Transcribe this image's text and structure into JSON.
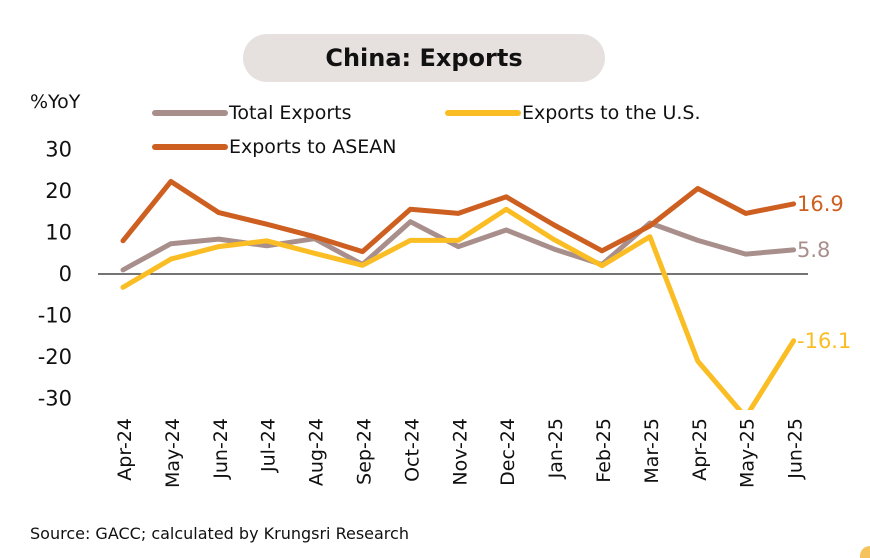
{
  "chart_data": {
    "type": "line",
    "title": "China: Exports",
    "ylabel": "%YoY",
    "xlabel": "",
    "source": "Source: GACC; calculated by Krungsri Research",
    "categories": [
      "Apr-24",
      "May-24",
      "Jun-24",
      "Jul-24",
      "Aug-24",
      "Sep-24",
      "Oct-24",
      "Nov-24",
      "Dec-24",
      "Jan-25",
      "Feb-25",
      "Mar-25",
      "Apr-25",
      "May-25",
      "Jun-25"
    ],
    "ylim": [
      -30,
      30
    ],
    "yticks": [
      30,
      20,
      10,
      0,
      -10,
      -20,
      -30
    ],
    "ytick_labels": [
      "30",
      "20",
      "10",
      "0",
      "-10",
      "-20",
      "-30"
    ],
    "grid": false,
    "legend_position": "top",
    "series": [
      {
        "name": "Total Exports",
        "color": "#a98f8c",
        "values": [
          1.0,
          7.3,
          8.4,
          6.8,
          8.5,
          2.3,
          12.6,
          6.6,
          10.6,
          6.0,
          2.3,
          12.3,
          8.1,
          4.8,
          5.8
        ],
        "end_label": "5.8"
      },
      {
        "name": "Exports to the U.S.",
        "color": "#fbbd24",
        "values": [
          -3.2,
          3.6,
          6.6,
          8.0,
          5.0,
          2.1,
          8.1,
          8.1,
          15.6,
          8.3,
          2.0,
          9.0,
          -21.0,
          -34.5,
          -16.1
        ],
        "end_label": "-16.1"
      },
      {
        "name": "Exports to ASEAN",
        "color": "#cd5f20",
        "values": [
          8.0,
          22.3,
          14.8,
          12.0,
          9.0,
          5.4,
          15.6,
          14.6,
          18.6,
          11.8,
          5.6,
          11.6,
          20.6,
          14.6,
          16.9
        ],
        "end_label": "16.9"
      }
    ]
  }
}
